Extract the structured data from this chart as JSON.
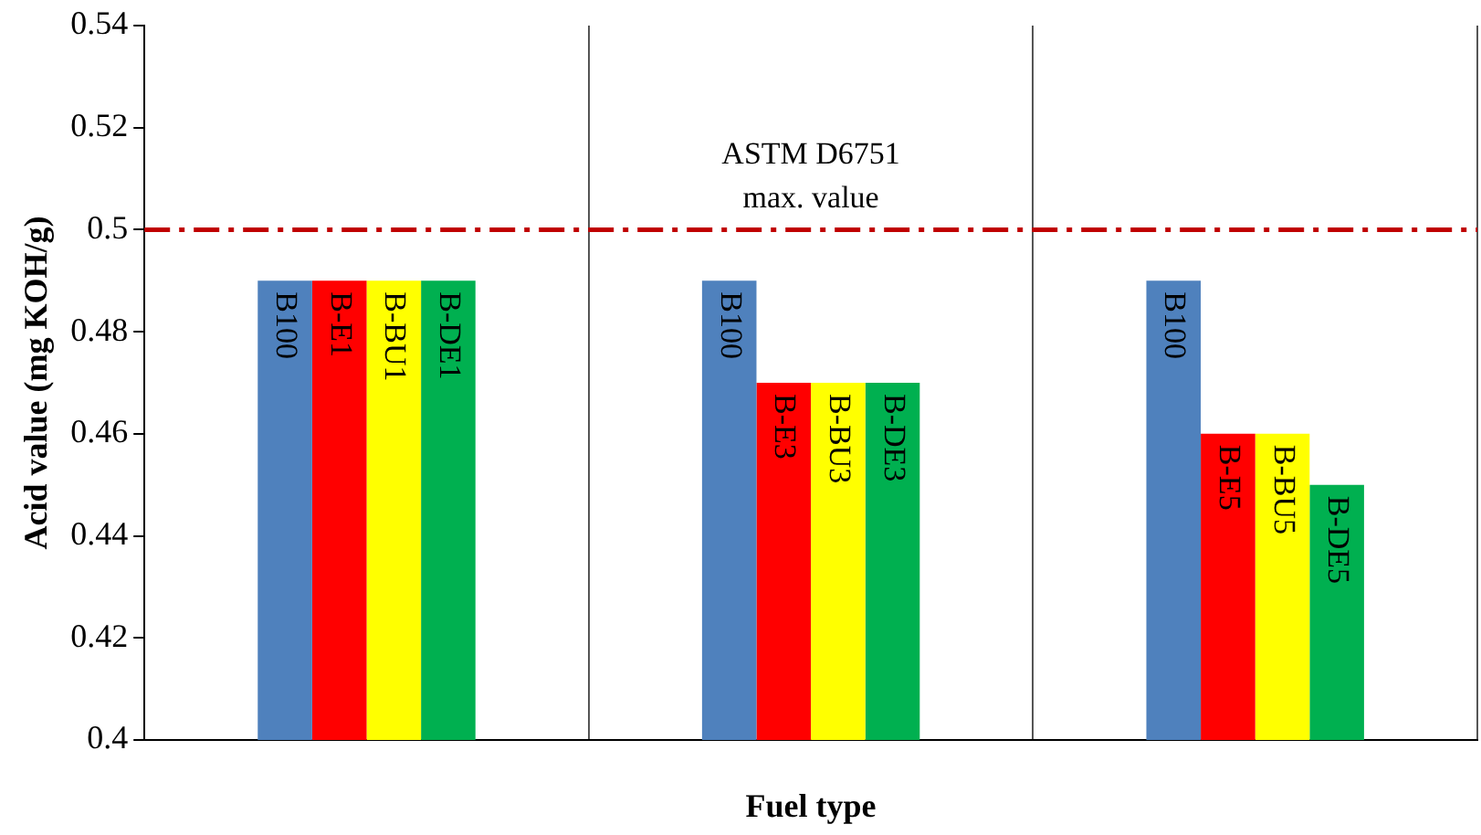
{
  "chart_data": {
    "type": "bar",
    "xlabel": "Fuel type",
    "ylabel": "Acid value (mg KOH/g)",
    "categories": [
      null,
      null,
      null
    ],
    "series": [
      {
        "color": "#4f81bd",
        "values": [
          0.49,
          0.49,
          0.49
        ],
        "value_labels": [
          "B100",
          "B100",
          "B100"
        ]
      },
      {
        "color": "#ff0000",
        "values": [
          0.49,
          0.47,
          0.46
        ],
        "value_labels": [
          "B-E1",
          "B-E3",
          "B-E5"
        ]
      },
      {
        "color": "#ffff00",
        "values": [
          0.49,
          0.47,
          0.46
        ],
        "value_labels": [
          "B-BU1",
          "B-BU3",
          "B-BU5"
        ]
      },
      {
        "color": "#00b050",
        "values": [
          0.49,
          0.47,
          0.45
        ],
        "value_labels": [
          "B-DE1",
          "B-DE3",
          "B-DE5"
        ]
      }
    ],
    "ylim": [
      0.4,
      0.54
    ],
    "yticks": [
      0.4,
      0.42,
      0.44,
      0.46,
      0.48,
      0.5,
      0.52,
      0.54
    ],
    "ref_lines": [
      {
        "axis": "y",
        "value": 0.5,
        "label": "ASTM D6751 max. value",
        "color": "#c00000",
        "line_style": "dashed"
      }
    ],
    "grid": "x",
    "legend": false
  }
}
